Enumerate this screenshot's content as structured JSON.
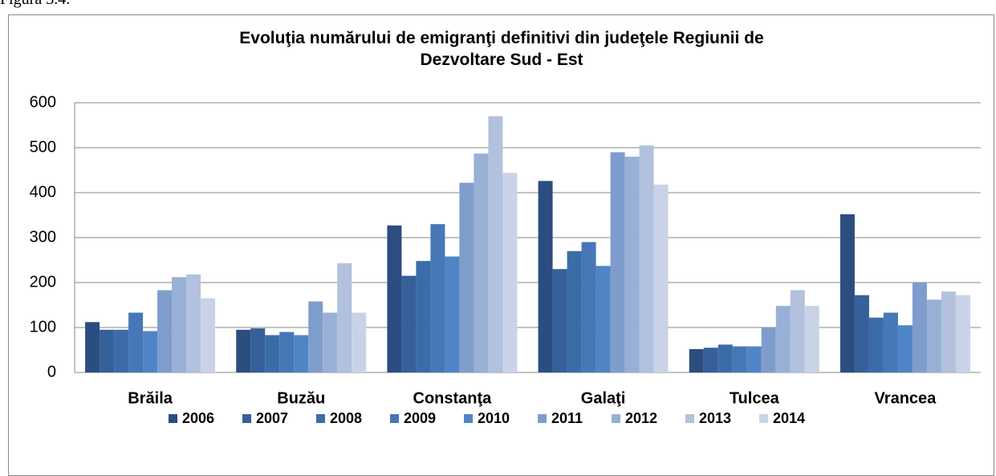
{
  "caption": "Figura 3.4.",
  "chart_data": {
    "type": "bar",
    "title": "Evoluţia numărului de emigranţi definitivi din judeţele Regiunii de Dezvoltare Sud - Est",
    "categories": [
      "Brăila",
      "Buzău",
      "Constanţa",
      "Galaţi",
      "Tulcea",
      "Vrancea"
    ],
    "series": [
      {
        "name": "2006",
        "color": "#2c4d7f",
        "values": [
          112,
          95,
          327,
          426,
          52,
          352
        ]
      },
      {
        "name": "2007",
        "color": "#35609a",
        "values": [
          95,
          98,
          215,
          230,
          55,
          172
        ]
      },
      {
        "name": "2008",
        "color": "#3c6ca8",
        "values": [
          95,
          83,
          248,
          270,
          62,
          122
        ]
      },
      {
        "name": "2009",
        "color": "#4677b6",
        "values": [
          133,
          90,
          330,
          290,
          58,
          133
        ]
      },
      {
        "name": "2010",
        "color": "#4f85c6",
        "values": [
          92,
          83,
          258,
          237,
          58,
          105
        ]
      },
      {
        "name": "2011",
        "color": "#7f9dcc",
        "values": [
          183,
          158,
          422,
          490,
          100,
          200
        ]
      },
      {
        "name": "2012",
        "color": "#98b0d6",
        "values": [
          212,
          133,
          487,
          480,
          148,
          162
        ]
      },
      {
        "name": "2013",
        "color": "#b1c1de",
        "values": [
          218,
          243,
          570,
          505,
          183,
          180
        ]
      },
      {
        "name": "2014",
        "color": "#c9d3e8",
        "values": [
          165,
          133,
          444,
          418,
          148,
          172
        ]
      }
    ],
    "ylim": [
      0,
      600
    ],
    "yticks": [
      0,
      100,
      200,
      300,
      400,
      500,
      600
    ],
    "grid": true,
    "legend": "bottom"
  }
}
